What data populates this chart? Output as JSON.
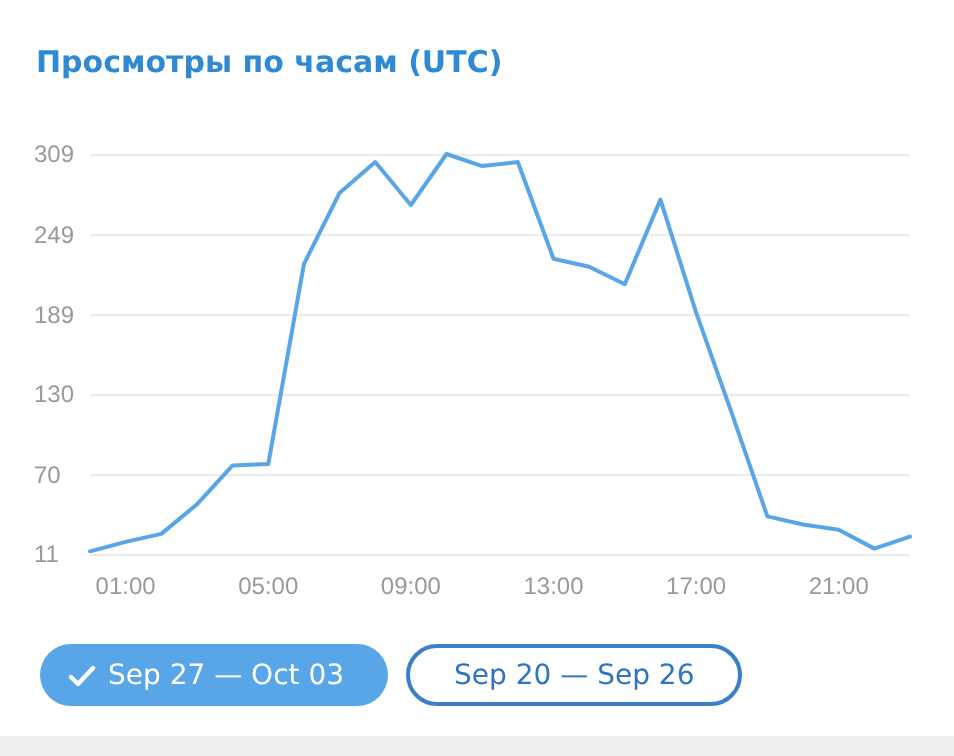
{
  "chart_data": {
    "type": "line",
    "title": "Просмотры по часам (UTC)",
    "x": [
      0,
      1,
      2,
      3,
      4,
      5,
      6,
      7,
      8,
      9,
      10,
      11,
      12,
      13,
      14,
      15,
      16,
      17,
      18,
      19,
      20,
      21,
      22,
      23
    ],
    "series": [
      {
        "name": "Sep 27 — Oct 03",
        "color": "#58a5e8",
        "values": [
          13,
          20,
          26,
          48,
          77,
          78,
          227,
          280,
          303,
          271,
          309,
          300,
          303,
          231,
          225,
          212,
          275,
          191,
          116,
          39,
          33,
          29,
          15,
          24
        ]
      }
    ],
    "xlim": [
      0,
      23
    ],
    "xticks": [
      {
        "value": 1,
        "label": "01:00"
      },
      {
        "value": 5,
        "label": "05:00"
      },
      {
        "value": 9,
        "label": "09:00"
      },
      {
        "value": 13,
        "label": "13:00"
      },
      {
        "value": 17,
        "label": "17:00"
      },
      {
        "value": 21,
        "label": "21:00"
      }
    ],
    "ylim": [
      11,
      309
    ],
    "yticks": [
      11,
      70,
      130,
      189,
      249,
      309
    ],
    "grid": "y",
    "legend": "bottom left",
    "marker": "none",
    "line_style": "solid",
    "annotations": [
      "Sep 20 — Sep 26"
    ]
  }
}
